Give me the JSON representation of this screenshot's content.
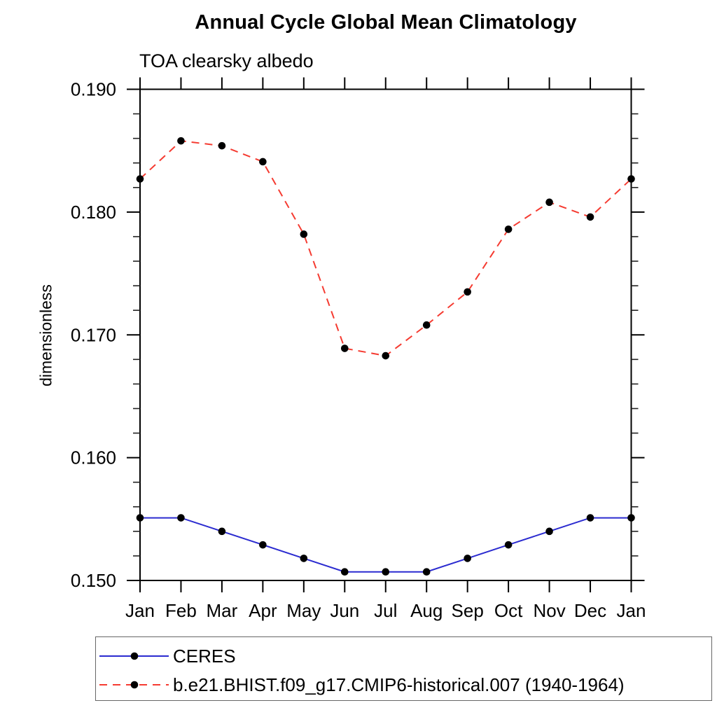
{
  "title": "Annual Cycle Global Mean Climatology",
  "subtitle": "TOA clearsky albedo",
  "ylabel": "dimensionless",
  "colors": {
    "axis": "#000000",
    "text": "#000000",
    "marker": "#000000",
    "ceres_blue": "#2b2bd0",
    "model_red": "#f53b31",
    "legend_border": "#666666"
  },
  "chart_data": {
    "type": "line",
    "categories": [
      "Jan",
      "Feb",
      "Mar",
      "Apr",
      "May",
      "Jun",
      "Jul",
      "Aug",
      "Sep",
      "Oct",
      "Nov",
      "Dec",
      "Jan"
    ],
    "series": [
      {
        "name": "CERES",
        "color": "#2b2bd0",
        "line_style": "solid",
        "marker": "circle",
        "marker_color": "#000000",
        "values": [
          0.1551,
          0.1551,
          0.154,
          0.1529,
          0.1518,
          0.1507,
          0.1507,
          0.1507,
          0.1518,
          0.1529,
          0.154,
          0.1551,
          0.1551
        ]
      },
      {
        "name": "b.e21.BHIST.f09_g17.CMIP6-historical.007 (1940-1964)",
        "color": "#f53b31",
        "line_style": "dashed",
        "marker": "circle",
        "marker_color": "#000000",
        "values": [
          0.1827,
          0.1858,
          0.1854,
          0.1841,
          0.1782,
          0.1689,
          0.1683,
          0.1708,
          0.1735,
          0.1786,
          0.1808,
          0.1796,
          0.1827
        ]
      }
    ],
    "ylim": [
      0.15,
      0.19
    ],
    "yticks": [
      0.15,
      0.16,
      0.17,
      0.18,
      0.19
    ],
    "ytick_labels": [
      "0.150",
      "0.160",
      "0.170",
      "0.180",
      "0.190"
    ],
    "minor_tick_interval": 0.002,
    "grid": false,
    "legend_position": "bottom-left"
  }
}
